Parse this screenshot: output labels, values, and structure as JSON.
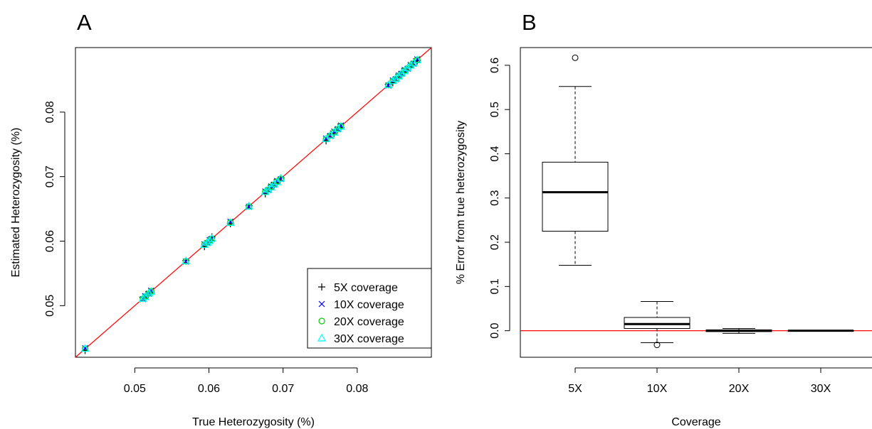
{
  "colors": {
    "five_x": "#000000",
    "ten_x": "#0000ff",
    "twenty_x": "#00cd00",
    "thirty_x": "#00ffff",
    "reference_line": "#ff0000",
    "frame": "#000000"
  },
  "chart_data": [
    {
      "panel_label": "A",
      "type": "scatter",
      "xlabel": "True Heterozygosity (%)",
      "ylabel": "Estimated Heterozygosity (%)",
      "xlim": [
        0.042,
        0.09
      ],
      "ylim": [
        0.042,
        0.09
      ],
      "x_ticks": [
        0.05,
        0.06,
        0.07,
        0.08
      ],
      "x_tick_labels": [
        "0.05",
        "0.06",
        "0.07",
        "0.08"
      ],
      "y_ticks": [
        0.05,
        0.06,
        0.07,
        0.08
      ],
      "y_tick_labels": [
        "0.05",
        "0.06",
        "0.07",
        "0.08"
      ],
      "reference_line": {
        "type": "identity",
        "color": "red"
      },
      "legend_position": "bottom-right",
      "legend": [
        {
          "symbol": "plus",
          "label": "5X coverage"
        },
        {
          "symbol": "cross",
          "label": "10X coverage"
        },
        {
          "symbol": "circle",
          "label": "20X coverage"
        },
        {
          "symbol": "triangle",
          "label": "30X coverage"
        }
      ],
      "true_values": [
        0.0433,
        0.0511,
        0.0514,
        0.0519,
        0.0522,
        0.0569,
        0.0594,
        0.0598,
        0.0601,
        0.0604,
        0.0629,
        0.0654,
        0.0676,
        0.068,
        0.0684,
        0.0688,
        0.0692,
        0.0697,
        0.0758,
        0.0764,
        0.0769,
        0.0774,
        0.0778,
        0.0842,
        0.0848,
        0.0852,
        0.0856,
        0.086,
        0.0864,
        0.0868,
        0.0872,
        0.0876,
        0.0881
      ],
      "series": [
        {
          "name": "5X coverage",
          "marker": "plus",
          "offset_pattern": [
            -0.00025,
            0.0002,
            -0.00015,
            0.00025,
            -0.0002,
            0.0001
          ]
        },
        {
          "name": "10X coverage",
          "marker": "cross",
          "offset_pattern": [
            0.0001,
            -0.0001,
            8e-05,
            -5e-05,
            0.00012,
            -8e-05
          ]
        },
        {
          "name": "20X coverage",
          "marker": "circle",
          "offset_pattern": [
            4e-05,
            -4e-05,
            2e-05,
            -3e-05,
            5e-05,
            -2e-05
          ]
        },
        {
          "name": "30X coverage",
          "marker": "triangle",
          "offset_pattern": [
            6e-05,
            0.0,
            -3e-05,
            4e-05,
            -2e-05,
            3e-05
          ]
        }
      ]
    },
    {
      "panel_label": "B",
      "type": "box",
      "xlabel": "Coverage",
      "ylabel": "% Error from true heterozygosity",
      "ylim": [
        -0.06,
        0.64
      ],
      "y_ticks": [
        0.0,
        0.1,
        0.2,
        0.3,
        0.4,
        0.5,
        0.6
      ],
      "y_tick_labels": [
        "0.0",
        "0.1",
        "0.2",
        "0.3",
        "0.4",
        "0.5",
        "0.6"
      ],
      "categories": [
        "5X",
        "10X",
        "20X",
        "30X"
      ],
      "reference_line": {
        "y": 0,
        "color": "red"
      },
      "boxes": [
        {
          "whisker_low": 0.148,
          "q1": 0.225,
          "median": 0.313,
          "q3": 0.381,
          "whisker_high": 0.552,
          "outliers": [
            0.617
          ]
        },
        {
          "whisker_low": -0.027,
          "q1": 0.005,
          "median": 0.015,
          "q3": 0.03,
          "whisker_high": 0.066,
          "outliers": [
            -0.032
          ]
        },
        {
          "whisker_low": -0.006,
          "q1": -0.002,
          "median": 0.0,
          "q3": 0.002,
          "whisker_high": 0.005,
          "outliers": []
        },
        {
          "whisker_low": -0.001,
          "q1": -0.0005,
          "median": 0.0,
          "q3": 0.0005,
          "whisker_high": 0.001,
          "outliers": []
        }
      ]
    }
  ]
}
